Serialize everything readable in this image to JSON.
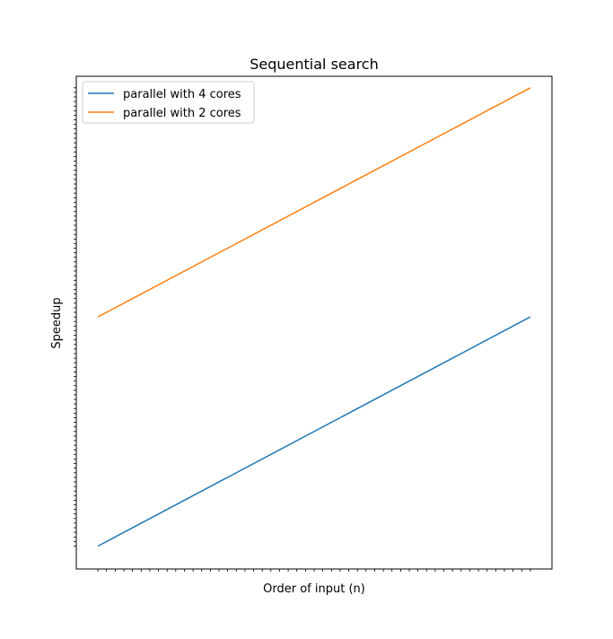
{
  "chart_data": {
    "type": "line",
    "title": "Sequential search",
    "xlabel": "Order of input (n)",
    "ylabel": "Speedup",
    "x_scale": "log",
    "y_scale": "log",
    "x_tick_labels_shown": false,
    "y_tick_labels_shown": false,
    "grid": false,
    "legend_position": "top-left",
    "series": [
      {
        "name": "parallel with 4 cores",
        "color": "#1f77b4",
        "x": [
          0,
          1
        ],
        "y": [
          0,
          1
        ]
      },
      {
        "name": "parallel with 2 cores",
        "color": "#ff7f0e",
        "x": [
          0,
          1
        ],
        "y": [
          1,
          2
        ]
      }
    ],
    "xlim": [
      -0.05,
      1.05
    ],
    "ylim": [
      -0.1,
      2.05
    ]
  }
}
